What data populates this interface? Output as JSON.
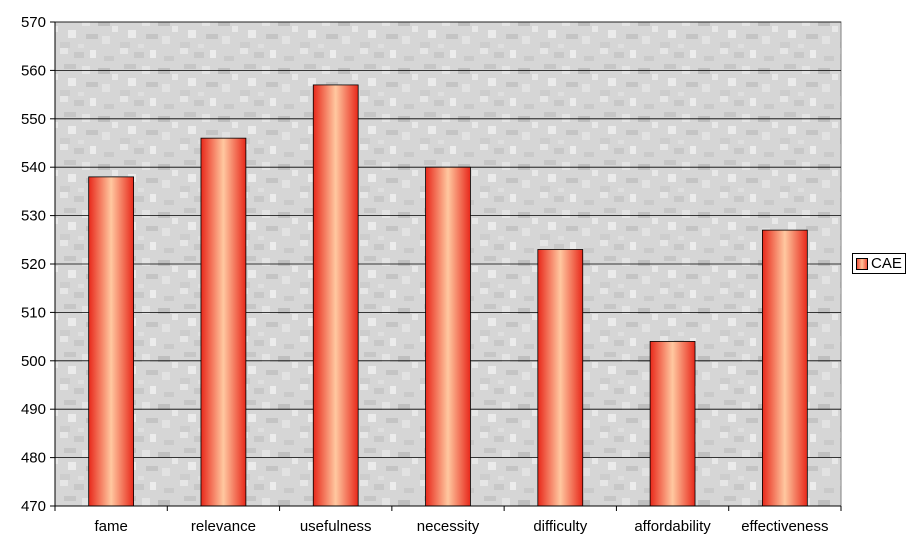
{
  "chart_data": {
    "type": "bar",
    "categories": [
      "fame",
      "relevance",
      "usefulness",
      "necessity",
      "difficulty",
      "affordability",
      "effectiveness"
    ],
    "series": [
      {
        "name": "CAE",
        "values": [
          538,
          546,
          557,
          540,
          523,
          504,
          527
        ]
      }
    ],
    "ylim": [
      470,
      570
    ],
    "yticks": [
      470,
      480,
      490,
      500,
      510,
      520,
      530,
      540,
      550,
      560,
      570
    ],
    "title": "",
    "xlabel": "",
    "ylabel": "",
    "grid": true,
    "legend_position": "right",
    "colors": {
      "bar_edge": "#e8281a",
      "bar_center": "#ffc8a0",
      "plot_bg": "#d9d9d9",
      "gridline": "#000000"
    }
  }
}
